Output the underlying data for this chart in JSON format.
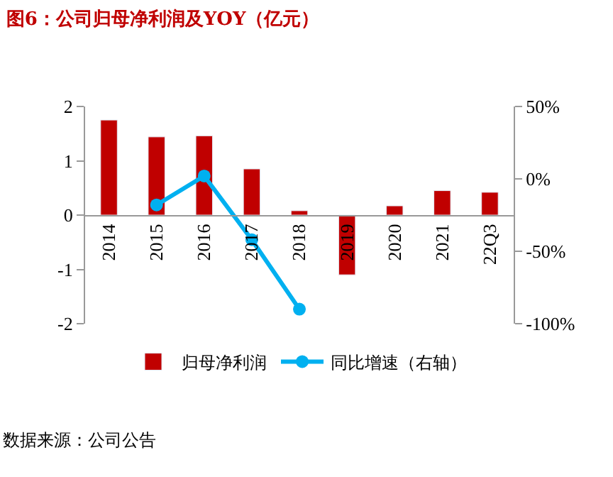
{
  "chart_data": {
    "type": "bar",
    "title": "图6：公司归母净利润及YOY（亿元）",
    "categories": [
      "2014",
      "2015",
      "2016",
      "2017",
      "2018",
      "2019",
      "2020",
      "2021",
      "22Q3"
    ],
    "series": [
      {
        "name": "归母净利润",
        "color": "#c00000",
        "values": [
          1.75,
          1.44,
          1.46,
          0.85,
          0.08,
          -1.1,
          0.17,
          0.45,
          0.42
        ]
      },
      {
        "name": "同比增速（右轴）",
        "type": "line",
        "axis": "y2",
        "color": "#00b0f0",
        "values": [
          null,
          -18,
          2,
          -42,
          -90,
          null,
          null,
          null,
          null
        ]
      }
    ],
    "ylim": [
      -2,
      2
    ],
    "yticks": [
      -2,
      -1,
      0,
      1,
      2
    ],
    "y2lim": [
      -100,
      50
    ],
    "y2ticks": [
      {
        "value": -100,
        "label": "-100%"
      },
      {
        "value": -50,
        "label": "-50%"
      },
      {
        "value": 0,
        "label": "0%"
      },
      {
        "value": 50,
        "label": "50%"
      }
    ],
    "marker": "circle",
    "line_style": "solid",
    "legend": "bottom",
    "annotations": [
      "数据来源：公司公告"
    ]
  }
}
